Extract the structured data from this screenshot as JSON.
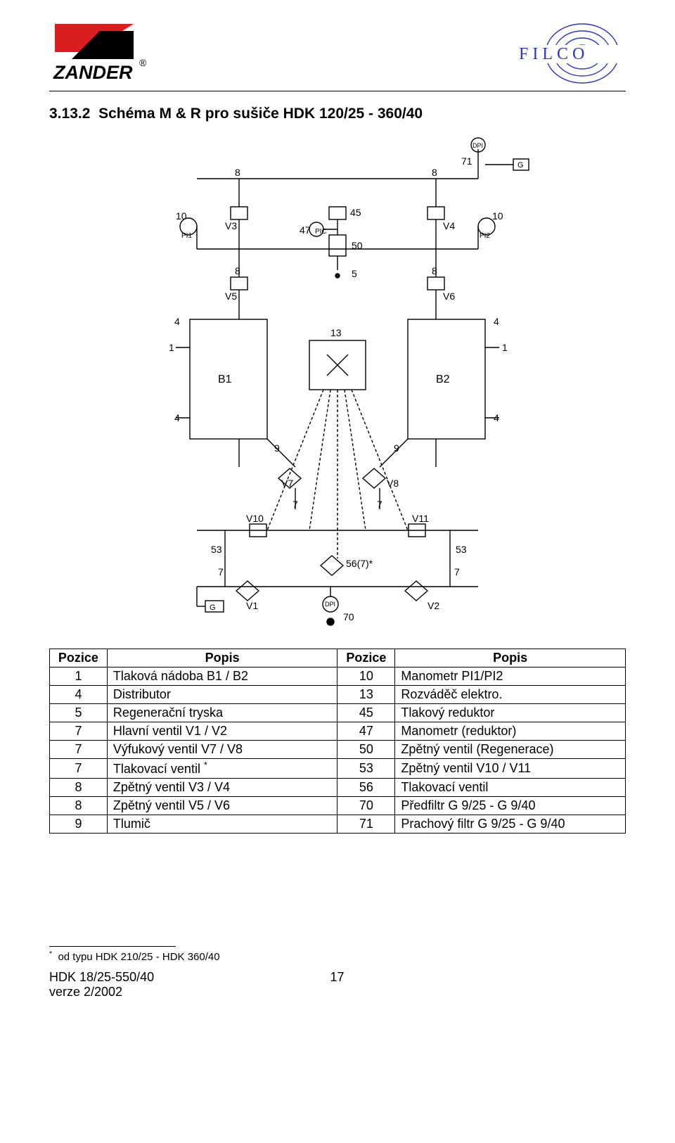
{
  "header": {
    "logo_left_text": "ZANDER",
    "logo_right_text": "FILCO",
    "logo_left_colors": {
      "red": "#d81e1e",
      "black": "#000000"
    },
    "logo_right_color": "#2a35c9"
  },
  "section": {
    "number": "3.13.2",
    "title": "Schéma M & R pro sušiče HDK 120/25 - 360/40"
  },
  "diagram": {
    "type": "schematic",
    "background": "#ffffff",
    "line_color": "#000000",
    "font_family": "sans-serif",
    "font_size_pt": 11,
    "components": {
      "vessels": [
        "B1",
        "B2"
      ],
      "valves": [
        "V1",
        "V2",
        "V3",
        "V4",
        "V5",
        "V6",
        "V7",
        "V8",
        "V10",
        "V11"
      ],
      "indicators": [
        "PI1",
        "PI2",
        "DPI",
        "DPI"
      ],
      "controller": "PIC",
      "blocks": [
        "13",
        "50",
        "5",
        "45",
        "47",
        "56(7)*"
      ],
      "ports": [
        "G",
        "G"
      ],
      "terminal_numbers": [
        1,
        4,
        7,
        8,
        9,
        10,
        53,
        70,
        71
      ]
    }
  },
  "table": {
    "columns": [
      "Pozice",
      "Popis",
      "Pozice",
      "Popis"
    ],
    "col_align": [
      "center",
      "left",
      "center",
      "left"
    ],
    "col_widths_pct": [
      10,
      40,
      10,
      40
    ],
    "rows": [
      [
        "1",
        "Tlaková nádoba  B1 / B2",
        "10",
        "Manometr  PI1/PI2"
      ],
      [
        "4",
        "Distributor",
        "13",
        "Rozváděč elektro."
      ],
      [
        "5",
        "Regenerační tryska",
        "45",
        "Tlakový reduktor"
      ],
      [
        "7",
        "Hlavní ventil  V1 / V2",
        "47",
        "Manometr (reduktor)"
      ],
      [
        "7",
        "Výfukový ventil  V7 / V8",
        "50",
        "Zpětný ventil (Regenerace)"
      ],
      [
        "7",
        "Tlakovací ventil *",
        "53",
        "Zpětný ventil V10 / V11"
      ],
      [
        "8",
        "Zpětný ventil V3 / V4",
        "56",
        "Tlakovací ventil"
      ],
      [
        "8",
        "Zpětný ventil V5 / V6",
        "70",
        "Předfiltr  G 9/25 - G 9/40"
      ],
      [
        "9",
        "Tlumič",
        "71",
        "Prachový filtr  G 9/25 - G 9/40"
      ]
    ],
    "footnote_row_index": 5
  },
  "footnote": {
    "marker": "*",
    "text": "od typu HDK 210/25 - HDK 360/40"
  },
  "footer": {
    "left_line1": "HDK 18/25-550/40",
    "left_line2": "verze 2/2002",
    "page_number": "17"
  }
}
